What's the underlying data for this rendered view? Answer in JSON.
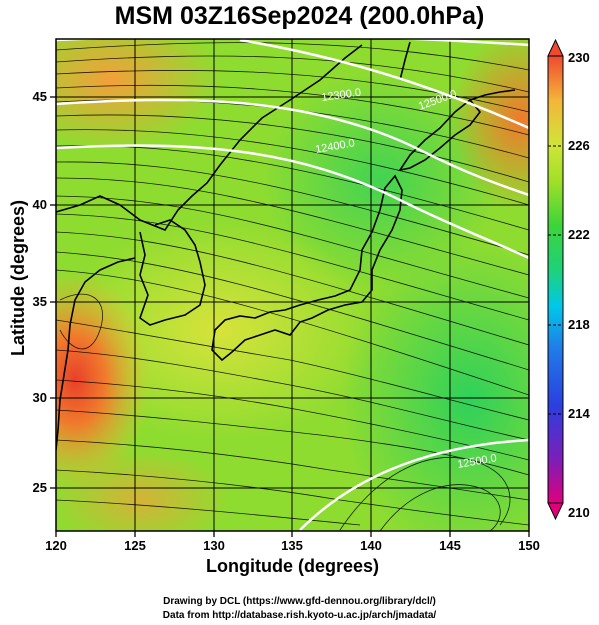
{
  "title": "MSM 03Z16Sep2024 (200.0hPa)",
  "axes": {
    "xlabel": "Longitude (degrees)",
    "ylabel": "Latitude  (degrees)",
    "x_ticks": [
      "120",
      "125",
      "130",
      "135",
      "140",
      "145",
      "150"
    ],
    "y_ticks": [
      "25",
      "30",
      "35",
      "40",
      "45"
    ],
    "x_range": [
      120,
      150
    ],
    "y_range": [
      22.4,
      47.6
    ]
  },
  "colorbar": {
    "ticks": [
      "230",
      "226",
      "222",
      "218",
      "214",
      "210"
    ],
    "range": [
      210,
      230
    ],
    "colors": [
      "#e0007c",
      "#5a2fc8",
      "#1f4fe0",
      "#00c8e8",
      "#1ed27a",
      "#3cd43a",
      "#a0e028",
      "#d0e43a",
      "#f3b63a",
      "#ef4a2f"
    ]
  },
  "contours": [
    {
      "label": "12300.0",
      "value": 12300
    },
    {
      "label": "12400.0",
      "value": 12400
    },
    {
      "label": "12500.0",
      "value": 12500
    },
    {
      "label": "12500.0",
      "value": 12500
    }
  ],
  "credits": {
    "line1": "Drawing by DCL (https://www.gfd-dennou.org/library/dcl/)",
    "line2": "Data from http://database.rish.kyoto-u.ac.jp/arch/jmadata/"
  }
}
